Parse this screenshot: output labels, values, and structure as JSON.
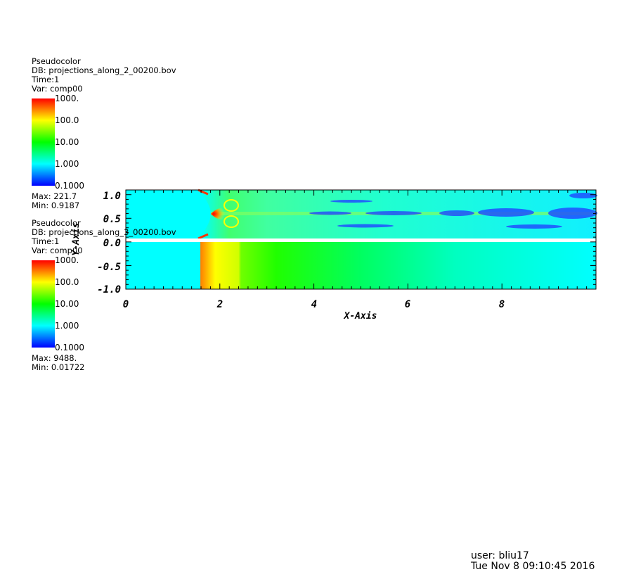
{
  "legends": [
    {
      "plot_type": "Pseudocolor",
      "db": "DB: projections_along_2_00200.bov",
      "time": "Time:1",
      "var": "Var: comp00",
      "ticks": [
        "1000.",
        "100.0",
        "10.00",
        "1.000",
        "0.1000"
      ],
      "max": "Max: 221.7",
      "min": "Min: 0.9187"
    },
    {
      "plot_type": "Pseudocolor",
      "db": "DB: projections_along_3_00200.bov",
      "time": "Time:1",
      "var": "Var: comp00",
      "ticks": [
        "1000.",
        "100.0",
        "10.00",
        "1.000",
        "0.1000"
      ],
      "max": "Max: 9488.",
      "min": "Min: 0.01722"
    }
  ],
  "axes": {
    "xlabel": "X-Axis",
    "ylabel": "Y-Axis",
    "xticks": [
      "0",
      "2",
      "4",
      "6",
      "8"
    ],
    "yticks": [
      "1.0",
      "0.5",
      "0.0",
      "-0.5",
      "-1.0"
    ]
  },
  "footer": {
    "user": "user: bliu17",
    "timestamp": "Tue Nov  8 09:10:45 2016"
  },
  "colors": {
    "colormap": [
      "#0000ff",
      "#00ffff",
      "#00ff00",
      "#ffff00",
      "#ff0000"
    ],
    "background_field": "#00ffff"
  },
  "chart_data": {
    "type": "heatmap",
    "colorbar_scale": "log",
    "colorbar_range": [
      0.1,
      1000
    ],
    "xlim": [
      0,
      10
    ],
    "ylim": [
      -1,
      1.1
    ],
    "plots": [
      {
        "db": "projections_along_2_00200.bov",
        "var": "comp00",
        "y_range": [
          0,
          1.1
        ],
        "max": 221.7,
        "min": 0.9187
      },
      {
        "db": "projections_along_3_00200.bov",
        "var": "comp00",
        "y_range": [
          -1,
          0
        ],
        "max": 9488,
        "min": 0.01722
      }
    ]
  }
}
